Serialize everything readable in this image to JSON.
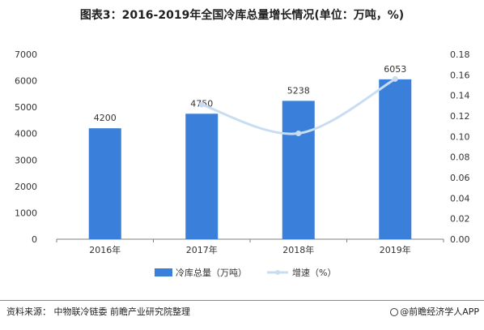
{
  "title": "图表3：2016-2019年全国冷库总量增长情况(单位：万吨，%)",
  "source": "资料来源： 中物联冷链委 前瞻产业研究院整理",
  "brand": "@前瞻经济学人APP",
  "colors": {
    "bar": "#3a7fd9",
    "line": "#c9ddf2",
    "axis": "#7f7f7f",
    "text": "#333333"
  },
  "chart_data": {
    "type": "bar",
    "categories": [
      "2016年",
      "2017年",
      "2018年",
      "2019年"
    ],
    "series": [
      {
        "name": "冷库总量（万吨）",
        "type": "bar",
        "axis": "left",
        "values": [
          4200,
          4750,
          5238,
          6053
        ]
      },
      {
        "name": "增速（%）",
        "type": "line",
        "axis": "right",
        "values": [
          null,
          0.131,
          0.103,
          0.156
        ]
      }
    ],
    "data_labels": [
      "4200",
      "4750",
      "5238",
      "6053"
    ],
    "left_axis": {
      "ylim": [
        0,
        7000
      ],
      "ticks": [
        "0",
        "1000",
        "2000",
        "3000",
        "4000",
        "5000",
        "6000",
        "7000"
      ]
    },
    "right_axis": {
      "ylim": [
        0,
        0.18
      ],
      "ticks": [
        "0.00",
        "0.02",
        "0.04",
        "0.06",
        "0.08",
        "0.10",
        "0.12",
        "0.14",
        "0.16",
        "0.18"
      ]
    },
    "legend_position": "bottom",
    "grid": false
  }
}
